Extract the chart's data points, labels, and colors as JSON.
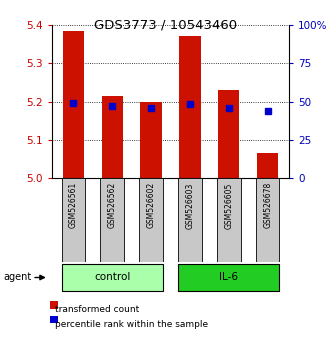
{
  "title": "GDS3773 / 10543460",
  "samples": [
    "GSM526561",
    "GSM526562",
    "GSM526602",
    "GSM526603",
    "GSM526605",
    "GSM526678"
  ],
  "red_bar_tops": [
    5.385,
    5.215,
    5.2,
    5.37,
    5.23,
    5.065
  ],
  "blue_y": [
    5.195,
    5.188,
    5.183,
    5.193,
    5.183,
    5.175
  ],
  "bar_base": 5.0,
  "ylim": [
    5.0,
    5.4
  ],
  "y2lim": [
    0,
    100
  ],
  "yticks": [
    5.0,
    5.1,
    5.2,
    5.3,
    5.4
  ],
  "y2ticks": [
    0,
    25,
    50,
    75,
    100
  ],
  "groups": [
    {
      "label": "control",
      "indices": [
        0,
        1,
        2
      ],
      "color": "#90EE90"
    },
    {
      "label": "IL-6",
      "indices": [
        3,
        4,
        5
      ],
      "color": "#00CC00"
    }
  ],
  "red_color": "#CC1100",
  "blue_color": "#0000CC",
  "bar_width": 0.55,
  "blue_marker_size": 4,
  "ylabel_left_color": "#CC0000",
  "ylabel_right_color": "#0000BB",
  "sample_box_color": "#C8C8C8",
  "agent_label": "agent",
  "legend_items": [
    "transformed count",
    "percentile rank within the sample"
  ],
  "control_color": "#AAFFAA",
  "il6_color": "#22CC22"
}
